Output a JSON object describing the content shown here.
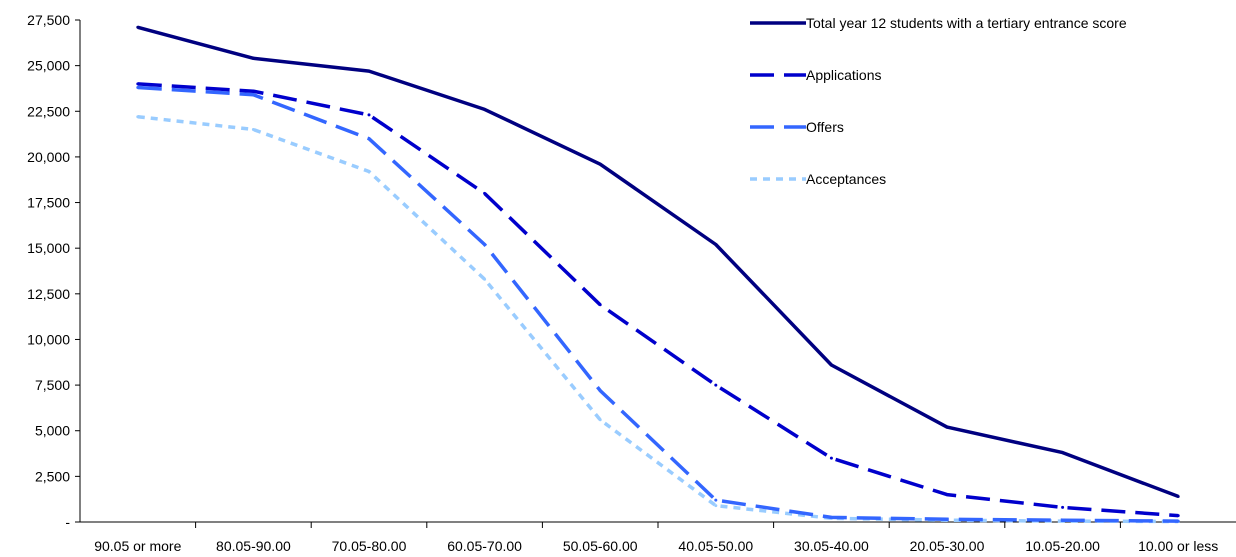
{
  "chart_data": {
    "type": "line",
    "categories": [
      "90.05 or more",
      "80.05-90.00",
      "70.05-80.00",
      "60.05-70.00",
      "50.05-60.00",
      "40.05-50.00",
      "30.05-40.00",
      "20.05-30.00",
      "10.05-20.00",
      "10.00 or less"
    ],
    "ylim": [
      0,
      27500
    ],
    "y_ticks": [
      0,
      2500,
      5000,
      7500,
      10000,
      12500,
      15000,
      17500,
      20000,
      22500,
      25000,
      27500
    ],
    "y_tick_labels": [
      "-",
      "2,500",
      "5,000",
      "7,500",
      "10,000",
      "12,500",
      "15,000",
      "17,500",
      "20,000",
      "22,500",
      "25,000",
      "27,500"
    ],
    "grid": false,
    "legend_position": "top-right",
    "series": [
      {
        "name": "Total year 12 students with a tertiary entrance score",
        "color": "#000080",
        "style": "solid",
        "values": [
          27100,
          25400,
          24700,
          22600,
          19600,
          15200,
          8600,
          5200,
          3800,
          1400
        ]
      },
      {
        "name": "Applications",
        "color": "#0000CC",
        "style": "dashed",
        "values": [
          24000,
          23600,
          22300,
          18000,
          11900,
          7500,
          3500,
          1500,
          800,
          350
        ]
      },
      {
        "name": "Offers",
        "color": "#3366FF",
        "style": "dashed",
        "values": [
          23800,
          23400,
          21000,
          15200,
          7200,
          1200,
          250,
          150,
          100,
          50
        ]
      },
      {
        "name": "Acceptances",
        "color": "#99CCFF",
        "style": "dotted",
        "values": [
          22200,
          21500,
          19200,
          13300,
          5600,
          900,
          200,
          100,
          50,
          30
        ]
      }
    ]
  }
}
